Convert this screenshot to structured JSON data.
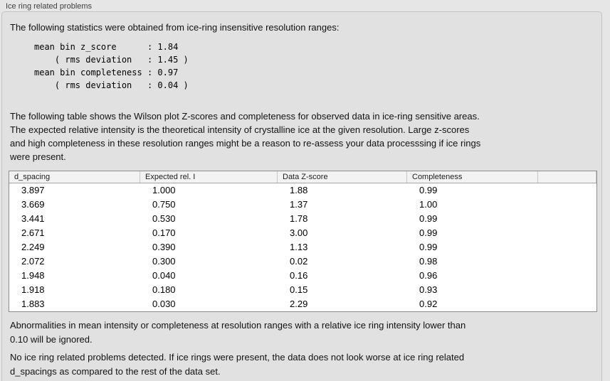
{
  "panel": {
    "title": "Ice ring related problems"
  },
  "intro": "The following statistics were obtained from ice-ring insensitive resolution ranges:",
  "stats_block": "mean bin z_score      : 1.84\n    ( rms deviation   : 1.45 )\nmean bin completeness : 0.97\n    ( rms deviation   : 0.04 )",
  "stats": {
    "mean_bin_z_score": "1.84",
    "z_score_rms_deviation": "1.45",
    "mean_bin_completeness": "0.97",
    "completeness_rms_deviation": "0.04"
  },
  "table_intro": "The following table shows the Wilson plot Z-scores and completeness for observed data in ice-ring sensitive areas.\nThe expected relative intensity is the theoretical intensity of crystalline ice at the given resolution. Large z-scores\nand high completeness in these resolution ranges might be a reason to re-assess your data processsing if ice rings\nwere present.",
  "table": {
    "columns": [
      "d_spacing",
      "Expected rel. I",
      "Data Z-score",
      "Completeness",
      ""
    ],
    "rows": [
      [
        "3.897",
        "1.000",
        "1.88",
        "0.99"
      ],
      [
        "3.669",
        "0.750",
        "1.37",
        "1.00"
      ],
      [
        "3.441",
        "0.530",
        "1.78",
        "0.99"
      ],
      [
        "2.671",
        "0.170",
        "3.00",
        "0.99"
      ],
      [
        "2.249",
        "0.390",
        "1.13",
        "0.99"
      ],
      [
        "2.072",
        "0.300",
        "0.02",
        "0.98"
      ],
      [
        "1.948",
        "0.040",
        "0.16",
        "0.96"
      ],
      [
        "1.918",
        "0.180",
        "0.15",
        "0.93"
      ],
      [
        "1.883",
        "0.030",
        "2.29",
        "0.92"
      ]
    ]
  },
  "ignore_note": "Abnormalities in mean intensity or completeness at resolution ranges with a relative ice ring intensity lower than\n0.10 will be ignored.",
  "conclusion": "No ice ring related problems detected. If ice rings were present, the data does not look worse at ice ring related\nd_spacings as compared to the rest of the data set.",
  "colors": {
    "window_bg": "#e6e6e6",
    "panel_bg": "#e1e1e1",
    "table_border": "#8d8d8d",
    "header_bg": "#f3f3f3"
  }
}
